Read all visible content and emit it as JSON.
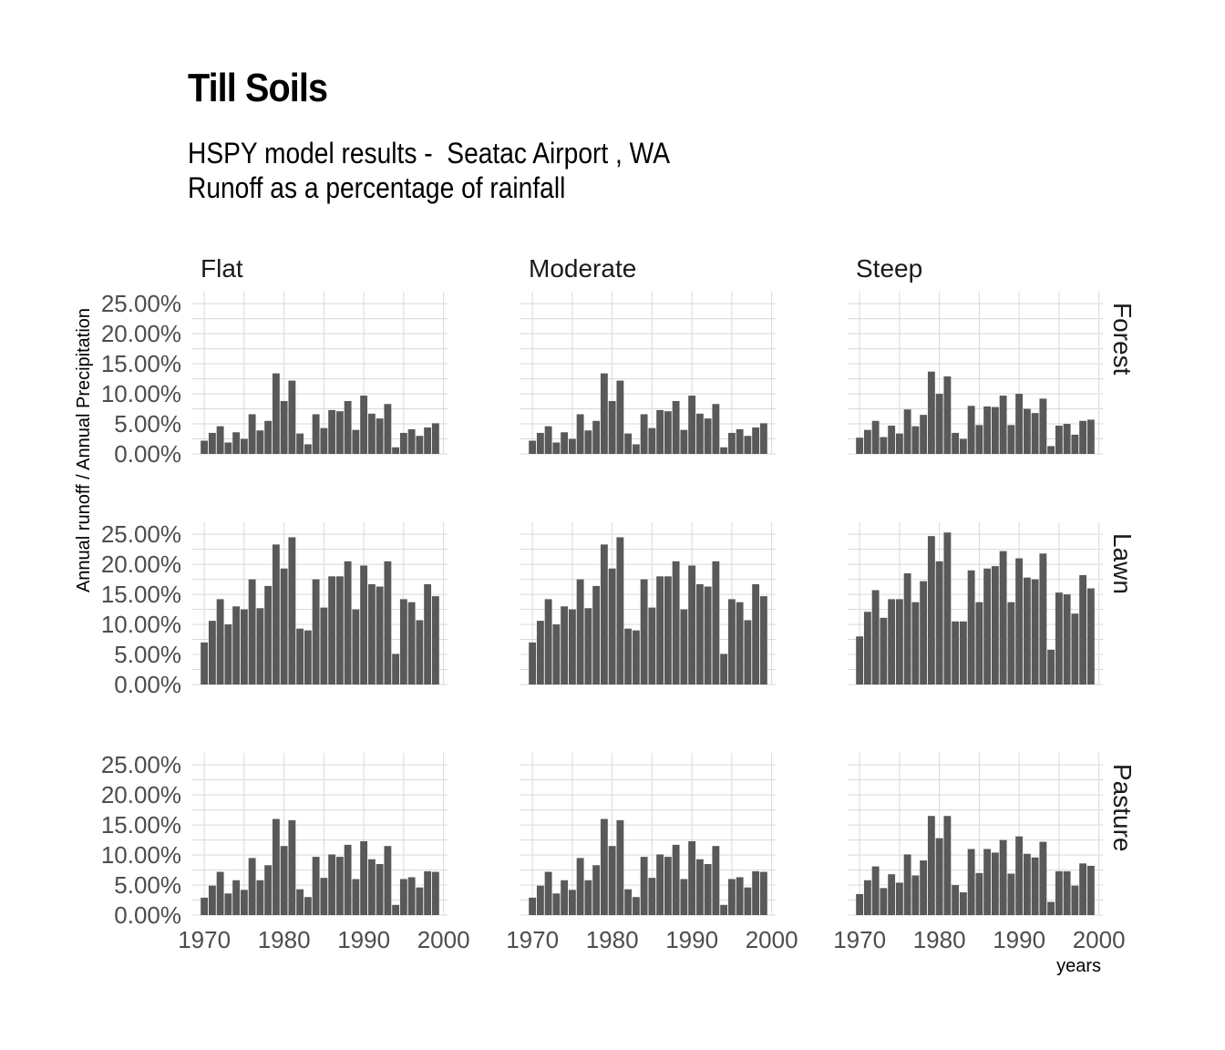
{
  "title": "Till Soils",
  "subtitle_lines": [
    "HSPY model results -  Seatac Airport , WA",
    "Runoff as a percentage of rainfall"
  ],
  "colors": {
    "bar": "#595959",
    "grid": "#d9d9d9",
    "tick_text": "#4d4d4d",
    "text": "#1a1a1a"
  },
  "chart_data": {
    "type": "bar",
    "facet": "grid",
    "xlabel": "years",
    "ylabel": "Annual runoff / Annual Precipitation",
    "xlim": [
      1968.5,
      2000.5
    ],
    "ylim": [
      0,
      0.27
    ],
    "x_ticks": [
      1970,
      1980,
      1990,
      2000
    ],
    "y_ticks": [
      0,
      0.05,
      0.1,
      0.15,
      0.2,
      0.25
    ],
    "y_tick_labels": [
      "0.00%",
      "5.00%",
      "10.00%",
      "15.00%",
      "20.00%",
      "25.00%"
    ],
    "columns": [
      "Flat",
      "Moderate",
      "Steep"
    ],
    "rows": [
      "Forest",
      "Lawn",
      "Pasture"
    ],
    "x": [
      1970,
      1971,
      1972,
      1973,
      1974,
      1975,
      1976,
      1977,
      1978,
      1979,
      1980,
      1981,
      1982,
      1983,
      1984,
      1985,
      1986,
      1987,
      1988,
      1989,
      1990,
      1991,
      1992,
      1993,
      1994,
      1995,
      1996,
      1997,
      1998,
      1999
    ],
    "panels": [
      {
        "column": "Flat",
        "row": "Forest",
        "values": [
          0.022,
          0.035,
          0.046,
          0.019,
          0.036,
          0.025,
          0.066,
          0.039,
          0.055,
          0.134,
          0.088,
          0.122,
          0.034,
          0.016,
          0.066,
          0.043,
          0.073,
          0.071,
          0.088,
          0.04,
          0.097,
          0.067,
          0.059,
          0.083,
          0.011,
          0.035,
          0.041,
          0.03,
          0.044,
          0.051
        ]
      },
      {
        "column": "Moderate",
        "row": "Forest",
        "values": [
          0.022,
          0.035,
          0.046,
          0.019,
          0.036,
          0.025,
          0.066,
          0.039,
          0.055,
          0.134,
          0.088,
          0.122,
          0.034,
          0.016,
          0.066,
          0.043,
          0.073,
          0.071,
          0.088,
          0.04,
          0.097,
          0.067,
          0.059,
          0.083,
          0.011,
          0.035,
          0.041,
          0.03,
          0.044,
          0.051
        ]
      },
      {
        "column": "Steep",
        "row": "Forest",
        "values": [
          0.027,
          0.04,
          0.055,
          0.028,
          0.047,
          0.034,
          0.074,
          0.046,
          0.065,
          0.137,
          0.1,
          0.129,
          0.035,
          0.025,
          0.08,
          0.048,
          0.079,
          0.078,
          0.097,
          0.048,
          0.1,
          0.075,
          0.068,
          0.092,
          0.013,
          0.047,
          0.05,
          0.032,
          0.055,
          0.057
        ]
      },
      {
        "column": "Flat",
        "row": "Lawn",
        "values": [
          0.07,
          0.106,
          0.142,
          0.1,
          0.13,
          0.125,
          0.175,
          0.127,
          0.164,
          0.233,
          0.193,
          0.245,
          0.093,
          0.09,
          0.175,
          0.128,
          0.18,
          0.18,
          0.205,
          0.125,
          0.198,
          0.167,
          0.163,
          0.205,
          0.051,
          0.142,
          0.137,
          0.107,
          0.167,
          0.147
        ]
      },
      {
        "column": "Moderate",
        "row": "Lawn",
        "values": [
          0.07,
          0.106,
          0.142,
          0.1,
          0.13,
          0.125,
          0.175,
          0.127,
          0.164,
          0.233,
          0.193,
          0.245,
          0.093,
          0.09,
          0.175,
          0.128,
          0.18,
          0.18,
          0.205,
          0.125,
          0.198,
          0.167,
          0.163,
          0.205,
          0.051,
          0.142,
          0.137,
          0.107,
          0.167,
          0.147
        ]
      },
      {
        "column": "Steep",
        "row": "Lawn",
        "values": [
          0.08,
          0.121,
          0.157,
          0.111,
          0.142,
          0.142,
          0.185,
          0.137,
          0.172,
          0.247,
          0.205,
          0.253,
          0.105,
          0.105,
          0.19,
          0.137,
          0.193,
          0.197,
          0.222,
          0.137,
          0.21,
          0.178,
          0.175,
          0.218,
          0.058,
          0.153,
          0.15,
          0.118,
          0.182,
          0.16
        ]
      },
      {
        "column": "Flat",
        "row": "Pasture",
        "values": [
          0.029,
          0.049,
          0.072,
          0.036,
          0.058,
          0.042,
          0.095,
          0.058,
          0.083,
          0.16,
          0.115,
          0.158,
          0.043,
          0.03,
          0.097,
          0.062,
          0.101,
          0.097,
          0.117,
          0.06,
          0.123,
          0.093,
          0.085,
          0.115,
          0.017,
          0.06,
          0.063,
          0.046,
          0.073,
          0.072
        ]
      },
      {
        "column": "Moderate",
        "row": "Pasture",
        "values": [
          0.029,
          0.049,
          0.072,
          0.036,
          0.058,
          0.042,
          0.095,
          0.058,
          0.083,
          0.16,
          0.115,
          0.158,
          0.043,
          0.03,
          0.097,
          0.062,
          0.101,
          0.097,
          0.117,
          0.06,
          0.123,
          0.093,
          0.085,
          0.115,
          0.017,
          0.06,
          0.063,
          0.046,
          0.073,
          0.072
        ]
      },
      {
        "column": "Steep",
        "row": "Pasture",
        "values": [
          0.035,
          0.058,
          0.081,
          0.045,
          0.068,
          0.054,
          0.101,
          0.066,
          0.091,
          0.165,
          0.128,
          0.165,
          0.05,
          0.038,
          0.11,
          0.07,
          0.11,
          0.104,
          0.125,
          0.069,
          0.131,
          0.102,
          0.096,
          0.122,
          0.022,
          0.073,
          0.073,
          0.049,
          0.086,
          0.082
        ]
      }
    ]
  }
}
